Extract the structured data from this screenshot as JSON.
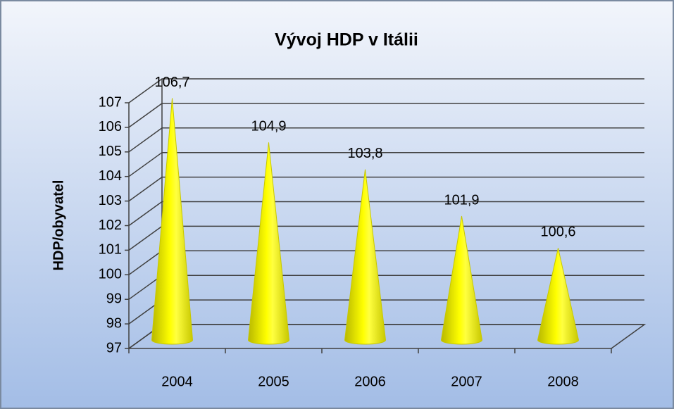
{
  "chart_data": {
    "type": "cone",
    "title": "Vývoj HDP v Itálii",
    "y_label": "HDP/obyvatel",
    "categories": [
      "2004",
      "2005",
      "2006",
      "2007",
      "2008"
    ],
    "values": [
      106.7,
      104.9,
      103.8,
      101.9,
      100.6
    ],
    "value_labels": [
      "106,7",
      "104,9",
      "103,8",
      "101,9",
      "100,6"
    ],
    "color": "#ffff00",
    "ylim": [
      97,
      107
    ],
    "yticks": [
      97,
      98,
      99,
      100,
      101,
      102,
      103,
      104,
      105,
      106,
      107
    ],
    "grid": true
  }
}
